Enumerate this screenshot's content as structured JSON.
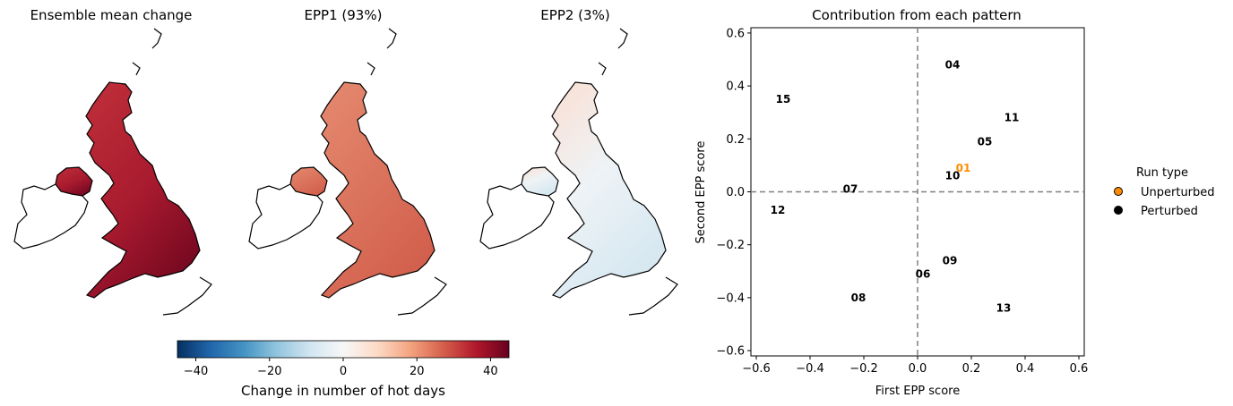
{
  "maps": [
    {
      "title": "Ensemble mean change",
      "fill": "strong-red"
    },
    {
      "title": "EPP1 (93%)",
      "fill": "medium-red"
    },
    {
      "title": "EPP2 (3%)",
      "fill": "light"
    }
  ],
  "colorbar": {
    "label": "Change in number of hot days",
    "ticks": [
      "−40",
      "−20",
      "0",
      "20",
      "40"
    ],
    "tick_values": [
      -40,
      -20,
      0,
      20,
      40
    ],
    "range": [
      -45,
      45
    ],
    "colormap": "RdBu_r"
  },
  "chart_data": {
    "type": "scatter",
    "title": "Contribution from each pattern",
    "xlabel": "First EPP score",
    "ylabel": "Second EPP score",
    "xlim": [
      -0.62,
      0.62
    ],
    "ylim": [
      -0.62,
      0.62
    ],
    "xticks": [
      "−0.6",
      "−0.4",
      "−0.2",
      "0.0",
      "0.2",
      "0.4",
      "0.6"
    ],
    "yticks": [
      "−0.6",
      "−0.4",
      "−0.2",
      "0.0",
      "0.2",
      "0.4",
      "0.6"
    ],
    "tick_values": [
      -0.6,
      -0.4,
      -0.2,
      0.0,
      0.2,
      0.4,
      0.6
    ],
    "reference_lines": {
      "x": 0.0,
      "y": 0.0,
      "style": "dashed",
      "color": "#808080"
    },
    "points": [
      {
        "label": "01",
        "x": 0.17,
        "y": 0.09,
        "type": "Unperturbed"
      },
      {
        "label": "04",
        "x": 0.13,
        "y": 0.48,
        "type": "Perturbed"
      },
      {
        "label": "05",
        "x": 0.25,
        "y": 0.19,
        "type": "Perturbed"
      },
      {
        "label": "06",
        "x": 0.02,
        "y": -0.31,
        "type": "Perturbed"
      },
      {
        "label": "07",
        "x": -0.25,
        "y": 0.01,
        "type": "Perturbed"
      },
      {
        "label": "08",
        "x": -0.22,
        "y": -0.4,
        "type": "Perturbed"
      },
      {
        "label": "09",
        "x": 0.12,
        "y": -0.26,
        "type": "Perturbed"
      },
      {
        "label": "10",
        "x": 0.13,
        "y": 0.06,
        "type": "Perturbed"
      },
      {
        "label": "11",
        "x": 0.35,
        "y": 0.28,
        "type": "Perturbed"
      },
      {
        "label": "12",
        "x": -0.52,
        "y": -0.07,
        "type": "Perturbed"
      },
      {
        "label": "13",
        "x": 0.32,
        "y": -0.44,
        "type": "Perturbed"
      },
      {
        "label": "15",
        "x": -0.5,
        "y": 0.35,
        "type": "Perturbed"
      }
    ],
    "legend": {
      "title": "Run type",
      "placement": "right",
      "entries": [
        {
          "label": "Unperturbed",
          "color": "#ff8c00"
        },
        {
          "label": "Perturbed",
          "color": "#000000"
        }
      ]
    }
  }
}
